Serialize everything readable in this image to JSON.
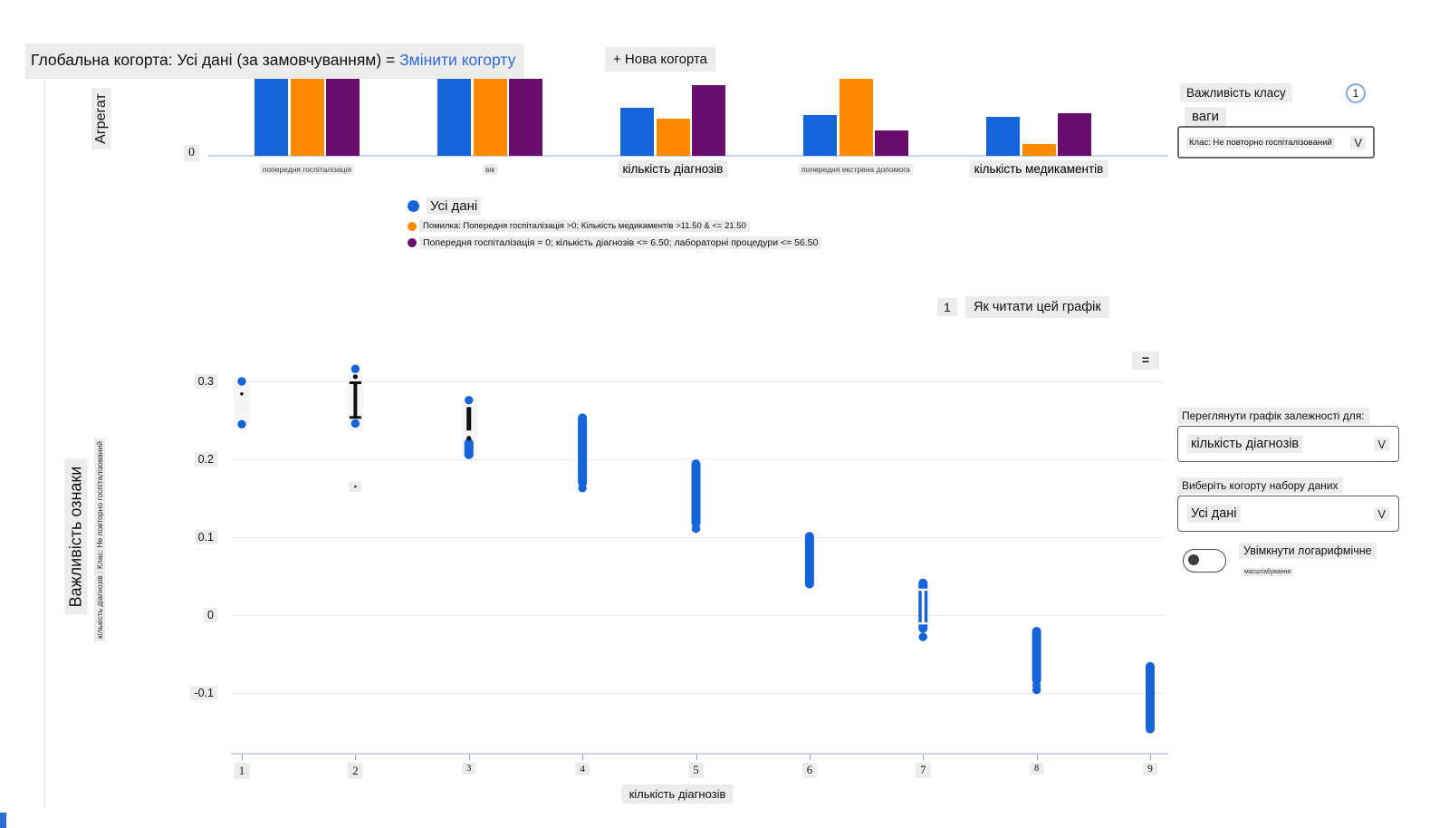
{
  "header": {
    "global_cohort_text": "Глобальна когорта: Усі дані (за замовчуванням) = ",
    "change_cohort_link": "Змінити когорту",
    "new_cohort_button": "+ Нова когорта"
  },
  "colors": {
    "blue": "#1565d8",
    "orange": "#ff8a00",
    "purple": "#6a0e6e",
    "link_blue": "#2f6bd8",
    "chip_bg": "#ececec",
    "gridline": "#e9e9e9",
    "axis_line": "#ccd3ee"
  },
  "chart_data": [
    {
      "type": "bar",
      "title": "",
      "ylabel": "Агрегат",
      "ytick": "0",
      "categories": [
        "попередня госпіталізація",
        "вік",
        "кількість діагнозів",
        "попередня екстрена допомога",
        "кількість медикаментів"
      ],
      "category_emphasis": [
        false,
        false,
        true,
        false,
        true
      ],
      "series": [
        {
          "name": "Усі дані",
          "color": "#1565d8",
          "values": [
            1.0,
            1.0,
            0.62,
            0.53,
            0.5
          ]
        },
        {
          "name": "Помилка: Попередня госпіталізація >0; Кількість медикаментів >11.50 & <= 21.50",
          "color": "#ff8a00",
          "values": [
            1.0,
            1.0,
            0.48,
            1.0,
            0.15
          ]
        },
        {
          "name": "Попередня госпіталізація = 0; кількість діагнозів <= 6.50; лабораторні процедури <= 56.50",
          "color": "#6a0e6e",
          "values": [
            1.0,
            1.0,
            0.92,
            0.33,
            0.55
          ]
        }
      ],
      "ylim": [
        0,
        1.05
      ],
      "grid": false,
      "legend_position": "below"
    },
    {
      "type": "scatter",
      "xlabel": "кількість діагнозів",
      "ylabel_primary": "Важливість ознаки",
      "ylabel_secondary": "кількість діагнозів : Клас: Не повторно госпіталізований",
      "xticks": [
        1,
        2,
        3,
        4,
        5,
        6,
        7,
        8,
        9
      ],
      "yticks": [
        0.3,
        0.2,
        0.1,
        0,
        -0.1
      ],
      "ylim": [
        -0.17,
        0.35
      ],
      "grid": true,
      "series_color": "#1565d8",
      "clusters": [
        {
          "x": 1,
          "dots": [
            0.3,
            0.245
          ],
          "black_dot": 0.284,
          "chip": [
            0.292,
            0.252
          ]
        },
        {
          "x": 2,
          "dots": [
            0.316,
            0.246
          ],
          "black_ibeam": [
            0.3,
            0.252
          ],
          "black_dot": 0.306,
          "chip": [
            0.303,
            0.243
          ],
          "low_chip_dot": 0.165
        },
        {
          "x": 3,
          "dots": [
            0.276
          ],
          "black_bar": [
            0.267,
            0.237
          ],
          "black_dot": 0.227,
          "range": [
            0.221,
            0.206
          ],
          "chip": [
            0.272,
            0.21
          ]
        },
        {
          "x": 4,
          "range": [
            0.253,
            0.17
          ],
          "dots": [
            0.163
          ]
        },
        {
          "x": 5,
          "range": [
            0.194,
            0.118
          ],
          "dots": [
            0.111
          ]
        },
        {
          "x": 6,
          "range": [
            0.101,
            0.04
          ]
        },
        {
          "x": 7,
          "range": [
            0.041,
            -0.017
          ],
          "white_ibeam": [
            0.034,
            -0.012
          ],
          "dots": [
            -0.028
          ]
        },
        {
          "x": 8,
          "range": [
            -0.021,
            -0.083
          ],
          "dots": [
            -0.09,
            -0.096
          ]
        },
        {
          "x": 9,
          "range": [
            -0.066,
            -0.146
          ]
        }
      ]
    }
  ],
  "legend": {
    "items": [
      {
        "label": "Усі дані",
        "color": "#1565d8",
        "emphasis": true
      },
      {
        "label": "Помилка: Попередня госпіталізація >0; Кількість медикаментів >11.50 & <= 21.50",
        "color": "#ff8a00",
        "emphasis": false
      },
      {
        "label": "Попередня госпіталізація = 0; кількість діагнозів <= 6.50; лабораторні процедури <= 56.50",
        "color": "#6a0e6e",
        "emphasis": false
      }
    ]
  },
  "class_importance_panel": {
    "title": "Важливість класу",
    "info_badge": "1",
    "weights_label": "ваги",
    "class_selector_value": "Клас: Не повторно госпіталізований",
    "chevron": "V"
  },
  "how_to_read": {
    "badge": "1",
    "label": "Як читати цей графік"
  },
  "plot_menu_icon": "=",
  "dependence_panel": {
    "feature_label": "Переглянути графік залежності для:",
    "feature_value": "кількість діагнозів",
    "cohort_label": "Виберіть когорту набору даних",
    "cohort_value": "Усі дані",
    "chevron": "V",
    "log_toggle_label": "Увімкнути логарифмічне",
    "log_toggle_label2": "масштабування",
    "log_toggle_on": false
  }
}
